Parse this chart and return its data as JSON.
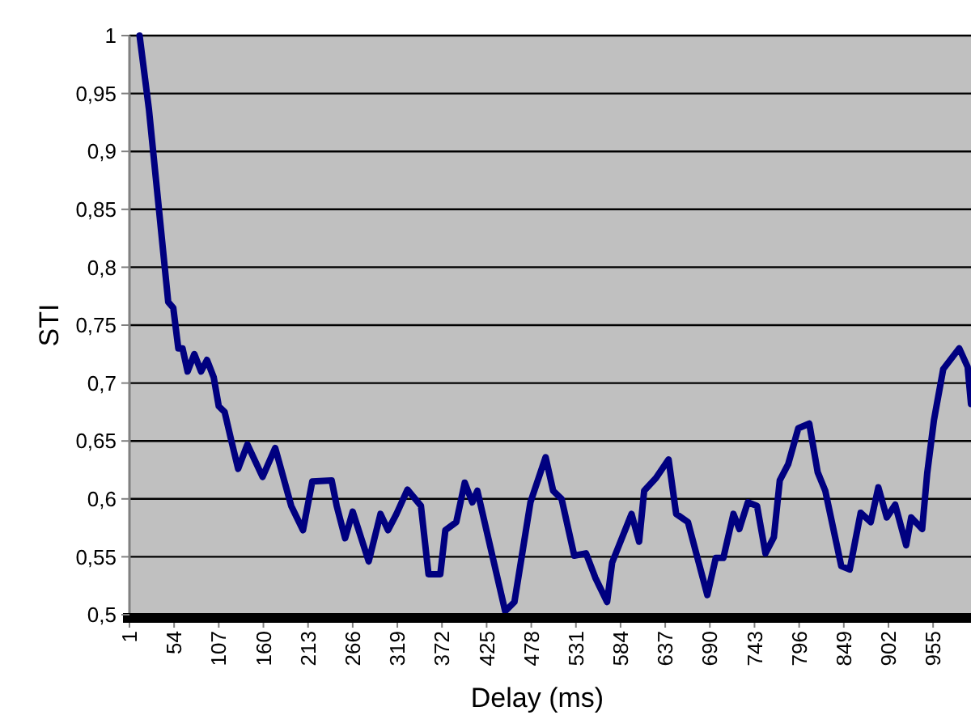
{
  "chart_data": {
    "type": "line",
    "xlabel": "Delay (ms)",
    "ylabel": "STI",
    "xlim": [
      1,
      1000
    ],
    "ylim": [
      0.5,
      1
    ],
    "xticks": [
      1,
      54,
      107,
      160,
      213,
      266,
      319,
      372,
      425,
      478,
      531,
      584,
      637,
      690,
      743,
      796,
      849,
      902,
      955
    ],
    "yticks": [
      {
        "value": 0.5,
        "label": "0,5"
      },
      {
        "value": 0.55,
        "label": "0,55"
      },
      {
        "value": 0.6,
        "label": "0,6"
      },
      {
        "value": 0.65,
        "label": "0,65"
      },
      {
        "value": 0.7,
        "label": "0,7"
      },
      {
        "value": 0.75,
        "label": "0,75"
      },
      {
        "value": 0.8,
        "label": "0,8"
      },
      {
        "value": 0.85,
        "label": "0,85"
      },
      {
        "value": 0.9,
        "label": "0,9"
      },
      {
        "value": 0.95,
        "label": "0,95"
      },
      {
        "value": 1,
        "label": "1"
      }
    ],
    "grid": "y",
    "legend": false,
    "marker": "none",
    "line_style": "solid",
    "series": [
      {
        "color": "#000080",
        "x": [
          13,
          24,
          36,
          47,
          53,
          59,
          64,
          70,
          78,
          86,
          93,
          101,
          107,
          114,
          122,
          130,
          141,
          159,
          174,
          193,
          207,
          218,
          241,
          247,
          257,
          266,
          285,
          299,
          308,
          318,
          331,
          347,
          356,
          370,
          376,
          389,
          399,
          408,
          414,
          447,
          458,
          477,
          495,
          504,
          514,
          529,
          543,
          554,
          568,
          574,
          597,
          606,
          612,
          626,
          641,
          650,
          664,
          687,
          697,
          706,
          718,
          725,
          735,
          746,
          756,
          766,
          773,
          783,
          795,
          808,
          818,
          827,
          846,
          856,
          869,
          881,
          890,
          900,
          910,
          923,
          929,
          942,
          948,
          956,
          967,
          986,
          996,
          1000
        ],
        "values": [
          1,
          0.937,
          0.85,
          0.77,
          0.765,
          0.73,
          0.73,
          0.71,
          0.725,
          0.71,
          0.72,
          0.705,
          0.68,
          0.675,
          0.65,
          0.626,
          0.647,
          0.619,
          0.644,
          0.594,
          0.573,
          0.615,
          0.616,
          0.594,
          0.566,
          0.589,
          0.546,
          0.587,
          0.573,
          0.587,
          0.608,
          0.594,
          0.535,
          0.535,
          0.573,
          0.58,
          0.614,
          0.597,
          0.607,
          0.503,
          0.511,
          0.597,
          0.636,
          0.607,
          0.6,
          0.551,
          0.553,
          0.532,
          0.511,
          0.545,
          0.587,
          0.563,
          0.607,
          0.618,
          0.634,
          0.587,
          0.58,
          0.517,
          0.549,
          0.549,
          0.587,
          0.574,
          0.597,
          0.594,
          0.553,
          0.567,
          0.616,
          0.63,
          0.661,
          0.665,
          0.623,
          0.607,
          0.542,
          0.539,
          0.588,
          0.58,
          0.61,
          0.584,
          0.595,
          0.56,
          0.584,
          0.574,
          0.622,
          0.668,
          0.712,
          0.73,
          0.714,
          0.682
        ]
      }
    ]
  }
}
